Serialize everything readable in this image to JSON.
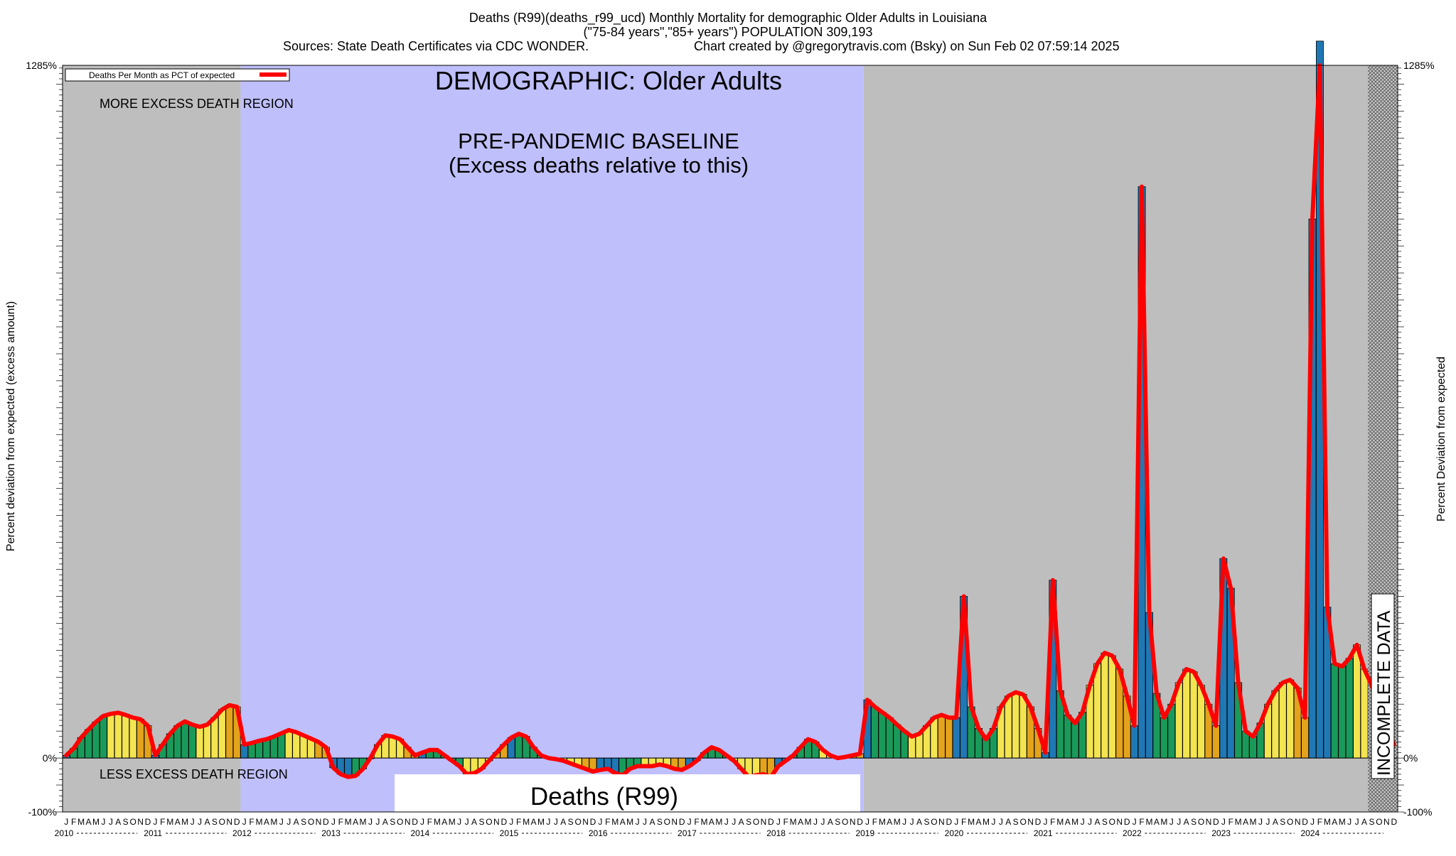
{
  "header": {
    "line1": "Deaths (R99)(deaths_r99_ucd) Monthly Mortality for demographic Older Adults in Louisiana",
    "line2": "(\"75-84 years\",\"85+ years\") POPULATION 309,193",
    "line3_left": "Sources: State Death Certificates via CDC WONDER.",
    "line3_right": "Chart created by @gregorytravis.com (Bsky) on Sun Feb 02 07:59:14 2025"
  },
  "chart_data": {
    "type": "bar",
    "ylabel_left": "Percent deviation from expected (excess amount)",
    "ylabel_right": "Percent Deviation from expected",
    "ylim": [
      -100,
      1285
    ],
    "y_ticks": [
      {
        "value": -100,
        "label": "-100%"
      },
      {
        "value": 0,
        "label": "0%"
      },
      {
        "value": 1285,
        "label": "1285%"
      }
    ],
    "legend": {
      "label": "Deaths Per Month as PCT of expected",
      "position": "top-left"
    },
    "annotations": {
      "demographic": "DEMOGRAPHIC: Older Adults",
      "baseline_line1": "PRE-PANDEMIC BASELINE",
      "baseline_line2": "(Excess deaths relative to this)",
      "more_region": "MORE EXCESS DEATH REGION",
      "less_region": "LESS EXCESS DEATH REGION",
      "incomplete": "INCOMPLETE DATA",
      "cause": "Deaths (R99)"
    },
    "month_letters": [
      "J",
      "F",
      "M",
      "A",
      "M",
      "J",
      "J",
      "A",
      "S",
      "O",
      "N",
      "D"
    ],
    "years": [
      "2010",
      "2011",
      "2012",
      "2013",
      "2014",
      "2015",
      "2016",
      "2017",
      "2018",
      "2019",
      "2020",
      "2021",
      "2022",
      "2023",
      "2024"
    ],
    "baseline_months": [
      24,
      108
    ],
    "incomplete_from_month": 176,
    "colors": {
      "region_gray": "#bebebe",
      "baseline_blue": "#bfbffc",
      "line": "#ff0000",
      "bar_blue": "#1f78b4",
      "bar_green": "#1a9a5a",
      "bar_yellow": "#f3e451",
      "bar_orange": "#e3a31c"
    },
    "values": [
      5,
      18,
      38,
      53,
      67,
      78,
      82,
      84,
      80,
      75,
      72,
      60,
      5,
      25,
      45,
      60,
      68,
      62,
      58,
      62,
      75,
      90,
      98,
      95,
      25,
      28,
      32,
      35,
      40,
      46,
      52,
      48,
      42,
      36,
      30,
      20,
      -18,
      -30,
      -35,
      -33,
      -20,
      0,
      25,
      42,
      40,
      35,
      20,
      5,
      10,
      15,
      15,
      5,
      -5,
      -15,
      -30,
      -28,
      -20,
      -5,
      10,
      25,
      38,
      45,
      40,
      20,
      5,
      0,
      -2,
      -5,
      -10,
      -15,
      -20,
      -25,
      -22,
      -20,
      -28,
      -32,
      -20,
      -15,
      -15,
      -15,
      -12,
      -15,
      -20,
      -22,
      -15,
      -5,
      10,
      20,
      15,
      5,
      -5,
      -20,
      -35,
      -32,
      -30,
      -35,
      -15,
      -5,
      5,
      20,
      35,
      30,
      15,
      5,
      0,
      2,
      5,
      8,
      108,
      95,
      85,
      75,
      62,
      50,
      40,
      45,
      60,
      75,
      80,
      75,
      75,
      300,
      95,
      55,
      35,
      55,
      95,
      115,
      122,
      118,
      95,
      55,
      10,
      330,
      125,
      80,
      65,
      85,
      135,
      175,
      195,
      190,
      165,
      115,
      60,
      1060,
      270,
      120,
      75,
      100,
      140,
      165,
      160,
      135,
      100,
      60,
      370,
      315,
      140,
      50,
      40,
      65,
      100,
      125,
      140,
      145,
      130,
      75,
      1000,
      1330,
      280,
      175,
      170,
      185,
      210,
      165,
      135,
      90,
      60,
      25
    ]
  }
}
